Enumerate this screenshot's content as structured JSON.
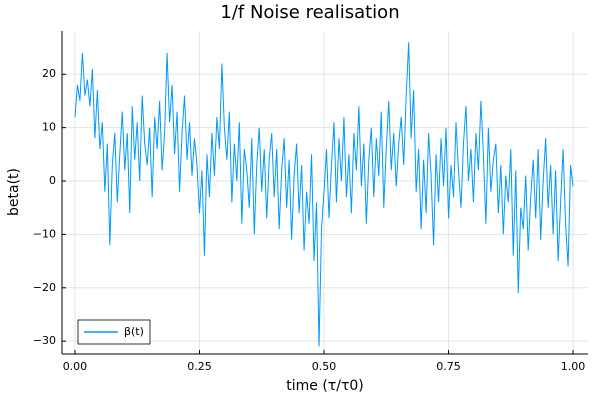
{
  "chart_data": {
    "type": "line",
    "title": "1/f Noise realisation",
    "x_label": "time (τ/τ0)",
    "y_label": "beta(t)",
    "legend": "bottom-left",
    "grid": true,
    "xlim": [
      -0.026,
      1.03
    ],
    "ylim": [
      -32.4,
      28.1
    ],
    "xticks": [
      {
        "value": 0,
        "label": "0.00"
      },
      {
        "value": 0.25,
        "label": "0.25"
      },
      {
        "value": 0.5,
        "label": "0.50"
      },
      {
        "value": 0.75,
        "label": "0.75"
      },
      {
        "value": 1,
        "label": "1.00"
      }
    ],
    "yticks": [
      {
        "value": -30,
        "label": "−30"
      },
      {
        "value": -20,
        "label": "−20"
      },
      {
        "value": -10,
        "label": "−10"
      },
      0,
      10,
      20
    ],
    "x": [
      0,
      0.005,
      0.01,
      0.015,
      0.02,
      0.025,
      0.03,
      0.035,
      0.04,
      0.045,
      0.05,
      0.055,
      0.06,
      0.065,
      0.07,
      0.075,
      0.08,
      0.085,
      0.09,
      0.095,
      0.1,
      0.105,
      0.11,
      0.115,
      0.12,
      0.125,
      0.13,
      0.135,
      0.14,
      0.145,
      0.15,
      0.155,
      0.16,
      0.165,
      0.17,
      0.175,
      0.18,
      0.185,
      0.19,
      0.195,
      0.2,
      0.205,
      0.21,
      0.215,
      0.22,
      0.225,
      0.23,
      0.235,
      0.24,
      0.245,
      0.25,
      0.255,
      0.26,
      0.265,
      0.27,
      0.275,
      0.28,
      0.285,
      0.29,
      0.295,
      0.3,
      0.305,
      0.31,
      0.315,
      0.32,
      0.325,
      0.33,
      0.335,
      0.34,
      0.345,
      0.35,
      0.355,
      0.36,
      0.365,
      0.37,
      0.375,
      0.38,
      0.385,
      0.39,
      0.395,
      0.4,
      0.405,
      0.41,
      0.415,
      0.42,
      0.425,
      0.43,
      0.435,
      0.44,
      0.445,
      0.45,
      0.455,
      0.46,
      0.465,
      0.47,
      0.475,
      0.48,
      0.485,
      0.49,
      0.495,
      0.5,
      0.505,
      0.51,
      0.515,
      0.52,
      0.525,
      0.53,
      0.535,
      0.54,
      0.545,
      0.55,
      0.555,
      0.56,
      0.565,
      0.57,
      0.575,
      0.58,
      0.585,
      0.59,
      0.595,
      0.6,
      0.605,
      0.61,
      0.615,
      0.62,
      0.625,
      0.63,
      0.635,
      0.64,
      0.645,
      0.65,
      0.655,
      0.66,
      0.665,
      0.67,
      0.675,
      0.68,
      0.685,
      0.69,
      0.695,
      0.7,
      0.705,
      0.71,
      0.715,
      0.72,
      0.725,
      0.73,
      0.735,
      0.74,
      0.745,
      0.75,
      0.755,
      0.76,
      0.765,
      0.77,
      0.775,
      0.78,
      0.785,
      0.79,
      0.795,
      0.8,
      0.805,
      0.81,
      0.815,
      0.82,
      0.825,
      0.83,
      0.835,
      0.84,
      0.845,
      0.85,
      0.855,
      0.86,
      0.865,
      0.87,
      0.875,
      0.88,
      0.885,
      0.89,
      0.895,
      0.9,
      0.905,
      0.91,
      0.915,
      0.92,
      0.925,
      0.93,
      0.935,
      0.94,
      0.945,
      0.95,
      0.955,
      0.96,
      0.965,
      0.97,
      0.975,
      0.98,
      0.985,
      0.99,
      0.995,
      1
    ],
    "series": [
      {
        "name": "β(t)",
        "color": "#009af9",
        "values": [
          12,
          18,
          15,
          24,
          16,
          19,
          14,
          21,
          8,
          17,
          6,
          11,
          -2,
          7,
          -12,
          3,
          9,
          -4,
          5,
          13,
          2,
          9,
          -6,
          14,
          4,
          11,
          0,
          16,
          7,
          3,
          10,
          -3,
          12,
          6,
          15,
          2,
          9,
          24,
          11,
          18,
          5,
          13,
          -2,
          9,
          16,
          4,
          11,
          1,
          8,
          3,
          -6,
          2,
          -14,
          5,
          -3,
          9,
          1,
          12,
          6,
          22,
          10,
          4,
          13,
          -4,
          7,
          0,
          11,
          -8,
          6,
          2,
          -5,
          8,
          -10,
          3,
          10,
          -2,
          6,
          -7,
          4,
          9,
          -3,
          6,
          -9,
          2,
          8,
          -5,
          4,
          -11,
          1,
          7,
          -6,
          3,
          -13,
          -2,
          -8,
          5,
          -15,
          -4,
          -31,
          -9,
          -2,
          6,
          -7,
          3,
          11,
          -4,
          8,
          0,
          12,
          -3,
          5,
          -6,
          9,
          2,
          14,
          -1,
          7,
          -8,
          4,
          10,
          -3,
          8,
          1,
          13,
          -5,
          6,
          15,
          2,
          9,
          -1,
          7,
          12,
          3,
          16,
          26,
          8,
          17,
          -2,
          6,
          -9,
          4,
          -6,
          9,
          1,
          -12,
          5,
          -4,
          8,
          -1,
          10,
          -7,
          3,
          -3,
          11,
          2,
          -5,
          7,
          14,
          0,
          6,
          -4,
          9,
          2,
          15,
          5,
          -8,
          10,
          -2,
          4,
          7,
          -6,
          3,
          -10,
          1,
          -4,
          6,
          -14,
          2,
          -21,
          -5,
          -9,
          1,
          -13,
          -3,
          4,
          -7,
          6,
          -11,
          0,
          8,
          -5,
          3,
          -10,
          2,
          -15,
          -4,
          6,
          -8,
          -16,
          3,
          -1
        ]
      }
    ]
  }
}
